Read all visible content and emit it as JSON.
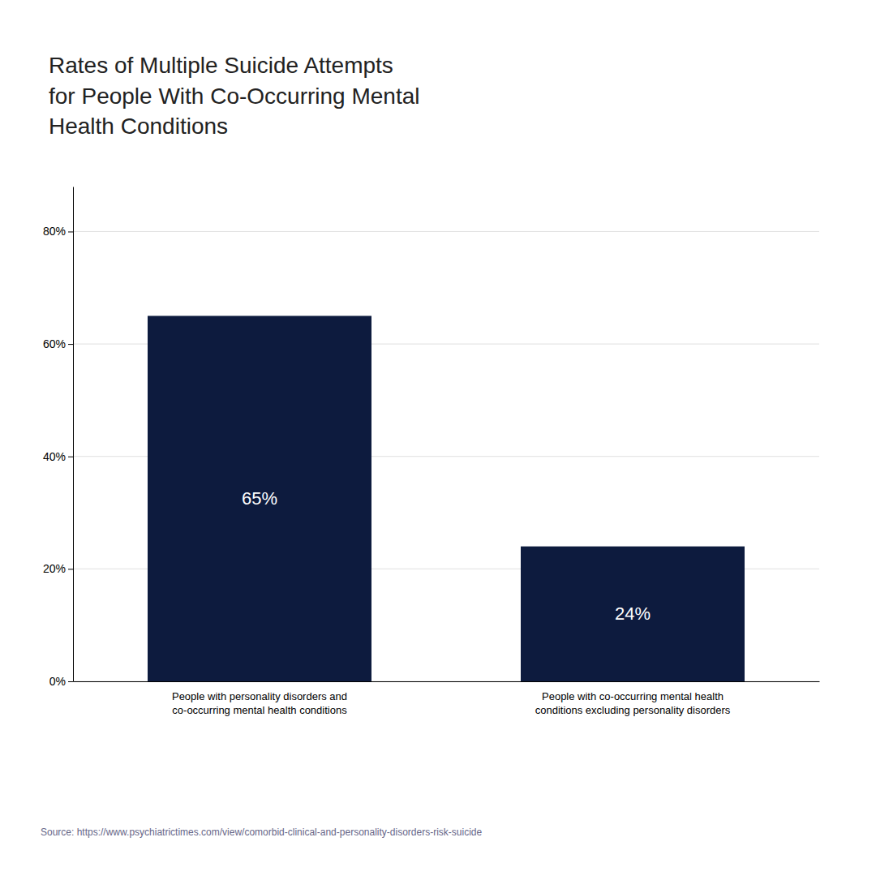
{
  "chart_data": {
    "type": "bar",
    "title": "Rates of Multiple Suicide Attempts\nfor People With Co-Occurring Mental\nHealth Conditions",
    "categories": [
      "People with personality disorders and\nco-occurring mental health conditions",
      "People with co-occurring mental health\nconditions excluding personality disorders"
    ],
    "values": [
      65,
      24
    ],
    "value_labels": [
      "65%",
      "24%"
    ],
    "data_labels": true,
    "color": "#0d1b3e",
    "ylim": [
      0,
      88
    ],
    "yticks": [
      {
        "value": 0,
        "label": "0%"
      },
      {
        "value": 20,
        "label": "20%"
      },
      {
        "value": 40,
        "label": "40%"
      },
      {
        "value": 60,
        "label": "60%"
      },
      {
        "value": 80,
        "label": "80%"
      }
    ],
    "grid": true,
    "source": "Source: https://www.psychiatrictimes.com/view/comorbid-clinical-and-personality-disorders-risk-suicide"
  }
}
